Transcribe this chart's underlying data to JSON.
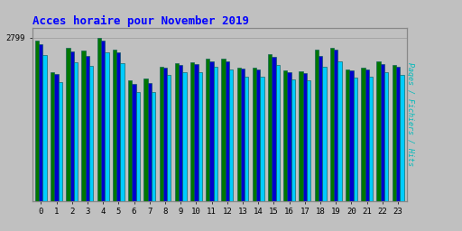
{
  "title": "Acces horaire pour November 2019",
  "title_color": "#0000FF",
  "ylabel_right": "Pages / Fichiers / Hits",
  "ylabel_right_color": "#00BBBB",
  "hours": [
    0,
    1,
    2,
    3,
    4,
    5,
    6,
    7,
    8,
    9,
    10,
    11,
    12,
    13,
    14,
    15,
    16,
    17,
    18,
    19,
    20,
    21,
    22,
    23
  ],
  "pages": [
    2750,
    2200,
    2620,
    2570,
    2799,
    2590,
    2060,
    2090,
    2300,
    2360,
    2380,
    2440,
    2440,
    2290,
    2285,
    2510,
    2230,
    2225,
    2590,
    2630,
    2255,
    2285,
    2385,
    2325
  ],
  "fichiers": [
    2680,
    2170,
    2560,
    2490,
    2740,
    2540,
    2005,
    2025,
    2275,
    2325,
    2345,
    2390,
    2390,
    2265,
    2255,
    2465,
    2205,
    2185,
    2490,
    2590,
    2235,
    2255,
    2345,
    2295
  ],
  "hits": [
    2500,
    2040,
    2380,
    2320,
    2545,
    2355,
    1865,
    1865,
    2155,
    2205,
    2205,
    2305,
    2255,
    2135,
    2125,
    2325,
    2085,
    2065,
    2305,
    2385,
    2105,
    2125,
    2205,
    2165
  ],
  "pages_color": "#007700",
  "fichiers_color": "#0000CC",
  "hits_color": "#00CCFF",
  "bar_edgecolor": "#005555",
  "bg_color": "#C0C0C0",
  "plot_bg_color": "#C0C0C0",
  "grid_color": "#A0A0A0",
  "ymax": 2799,
  "ymin": 0,
  "bar_width": 0.25
}
